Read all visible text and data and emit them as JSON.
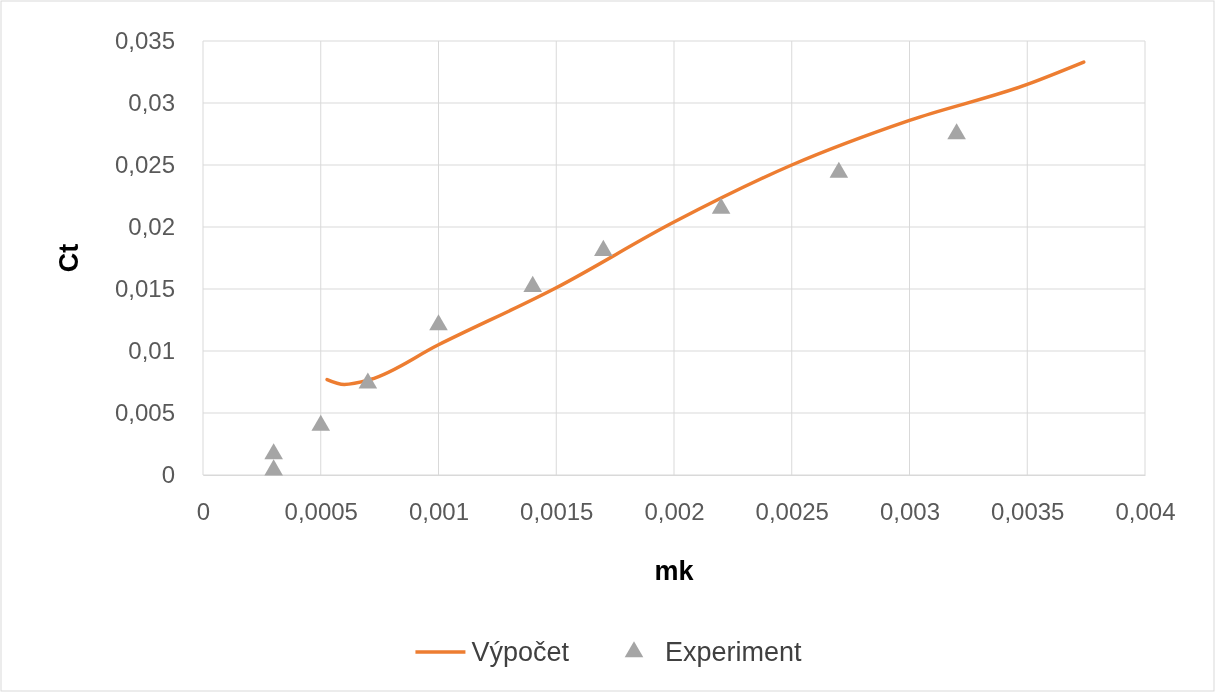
{
  "chart_data": {
    "type": "line",
    "xlabel": "mk",
    "ylabel": "Ct",
    "grid": true,
    "legend": "bottom",
    "xlim": [
      0,
      0.004
    ],
    "ylim": [
      0,
      0.035
    ],
    "xticks": [
      0,
      {
        "value": 0.0005,
        "label": "0,0005"
      },
      {
        "value": 0.001,
        "label": "0,001"
      },
      {
        "value": 0.0015,
        "label": "0,0015"
      },
      {
        "value": 0.002,
        "label": "0,002"
      },
      {
        "value": 0.0025,
        "label": "0,0025"
      },
      {
        "value": 0.003,
        "label": "0,003"
      },
      {
        "value": 0.0035,
        "label": "0,0035"
      },
      {
        "value": 0.004,
        "label": "0,004"
      }
    ],
    "yticks": [
      0,
      {
        "value": 0.005,
        "label": "0,005"
      },
      {
        "value": 0.01,
        "label": "0,01"
      },
      {
        "value": 0.015,
        "label": "0,015"
      },
      {
        "value": 0.02,
        "label": "0,02"
      },
      {
        "value": 0.025,
        "label": "0,025"
      },
      {
        "value": 0.03,
        "label": "0,03"
      },
      {
        "value": 0.035,
        "label": "0,035"
      }
    ],
    "series": [
      {
        "name": "Výpočet",
        "color": "#ed7d31",
        "marker": "none",
        "line_style": "solid",
        "x": [
          0.000527,
          0.0006,
          0.00071,
          0.001,
          0.0015,
          0.002,
          0.0025,
          0.003,
          0.0035,
          0.00374
        ],
        "values": [
          0.0077,
          0.0073,
          0.0077,
          0.0105,
          0.0151,
          0.0204,
          0.025,
          0.0286,
          0.0315,
          0.0333
        ]
      },
      {
        "name": "Experiment",
        "type": "scatter",
        "color": "#a5a5a5",
        "marker": "triangle",
        "x": [
          0.0003,
          0.0003,
          0.0005,
          0.0007,
          0.001,
          0.0014,
          0.0017,
          0.0022,
          0.0027,
          0.0032
        ],
        "values": [
          0.0017,
          0.0004,
          0.004,
          0.0074,
          0.0121,
          0.0152,
          0.0181,
          0.0215,
          0.0244,
          0.0275
        ]
      }
    ]
  }
}
